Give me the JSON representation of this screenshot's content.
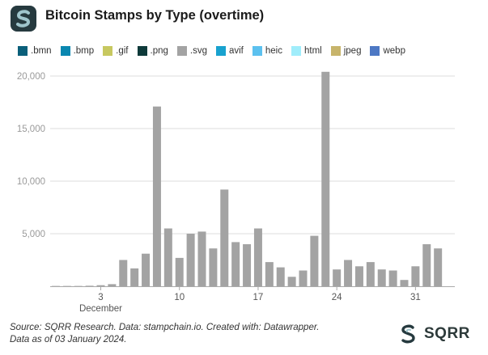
{
  "title": "Bitcoin Stamps by Type (overtime)",
  "footer": {
    "line1": "Source: SQRR Research. Data: stampchain.io. Created with: Datawrapper.",
    "line2": "Data as of 03 January 2024."
  },
  "brand": {
    "name": "SQRR",
    "icon": "sqrr-logo-icon"
  },
  "colors": {
    "brand_dark": "#263a3f",
    "brand_light": "#9fc5cc",
    "svg_series": "#a3a3a3",
    "grid": "#dedede",
    "axis": "#aaaaaa"
  },
  "chart_data": {
    "type": "bar",
    "stacked": true,
    "title": "Bitcoin Stamps by Type (overtime)",
    "legend_position": "top-left",
    "legend": [
      {
        "name": ".bmn",
        "color": "#0a5f7a"
      },
      {
        "name": ".bmp",
        "color": "#0a87b0"
      },
      {
        "name": ".gif",
        "color": "#c7c860"
      },
      {
        "name": ".png",
        "color": "#0e3a3a"
      },
      {
        "name": ".svg",
        "color": "#a3a3a3"
      },
      {
        "name": "avif",
        "color": "#18a2cf"
      },
      {
        "name": "heic",
        "color": "#5cc1ef"
      },
      {
        "name": "html",
        "color": "#a0edfb"
      },
      {
        "name": "jpeg",
        "color": "#c7b46b"
      },
      {
        "name": "webp",
        "color": "#4d78c4"
      }
    ],
    "x": [
      "2023-11-29",
      "2023-11-30",
      "2023-12-01",
      "2023-12-02",
      "2023-12-03",
      "2023-12-04",
      "2023-12-05",
      "2023-12-06",
      "2023-12-07",
      "2023-12-08",
      "2023-12-09",
      "2023-12-10",
      "2023-12-11",
      "2023-12-12",
      "2023-12-13",
      "2023-12-14",
      "2023-12-15",
      "2023-12-16",
      "2023-12-17",
      "2023-12-18",
      "2023-12-19",
      "2023-12-20",
      "2023-12-21",
      "2023-12-22",
      "2023-12-23",
      "2023-12-24",
      "2023-12-25",
      "2023-12-26",
      "2023-12-27",
      "2023-12-28",
      "2023-12-29",
      "2023-12-30",
      "2023-12-31",
      "2024-01-01",
      "2024-01-02",
      "2024-01-03"
    ],
    "series": [
      {
        "name": ".svg",
        "values": [
          30,
          30,
          30,
          50,
          100,
          200,
          2500,
          1700,
          3100,
          17100,
          5500,
          2700,
          5000,
          5200,
          3600,
          9200,
          4200,
          4000,
          5500,
          2300,
          1800,
          900,
          1500,
          4800,
          20400,
          1600,
          2500,
          1900,
          2300,
          1600,
          1500,
          600,
          1900,
          4000,
          3600,
          0
        ]
      }
    ],
    "x_ticks": [
      {
        "date": "2023-12-03",
        "label": "3",
        "sublabel": "December"
      },
      {
        "date": "2023-12-10",
        "label": "10",
        "sublabel": ""
      },
      {
        "date": "2023-12-17",
        "label": "17",
        "sublabel": ""
      },
      {
        "date": "2023-12-24",
        "label": "24",
        "sublabel": ""
      },
      {
        "date": "2023-12-31",
        "label": "31",
        "sublabel": ""
      }
    ],
    "y_ticks": [
      {
        "value": 20000,
        "label": "20,000"
      },
      {
        "value": 15000,
        "label": "15,000"
      },
      {
        "value": 10000,
        "label": "10,000"
      },
      {
        "value": 5000,
        "label": "5,000"
      }
    ],
    "ylim": [
      0,
      21000
    ],
    "grid": true
  }
}
